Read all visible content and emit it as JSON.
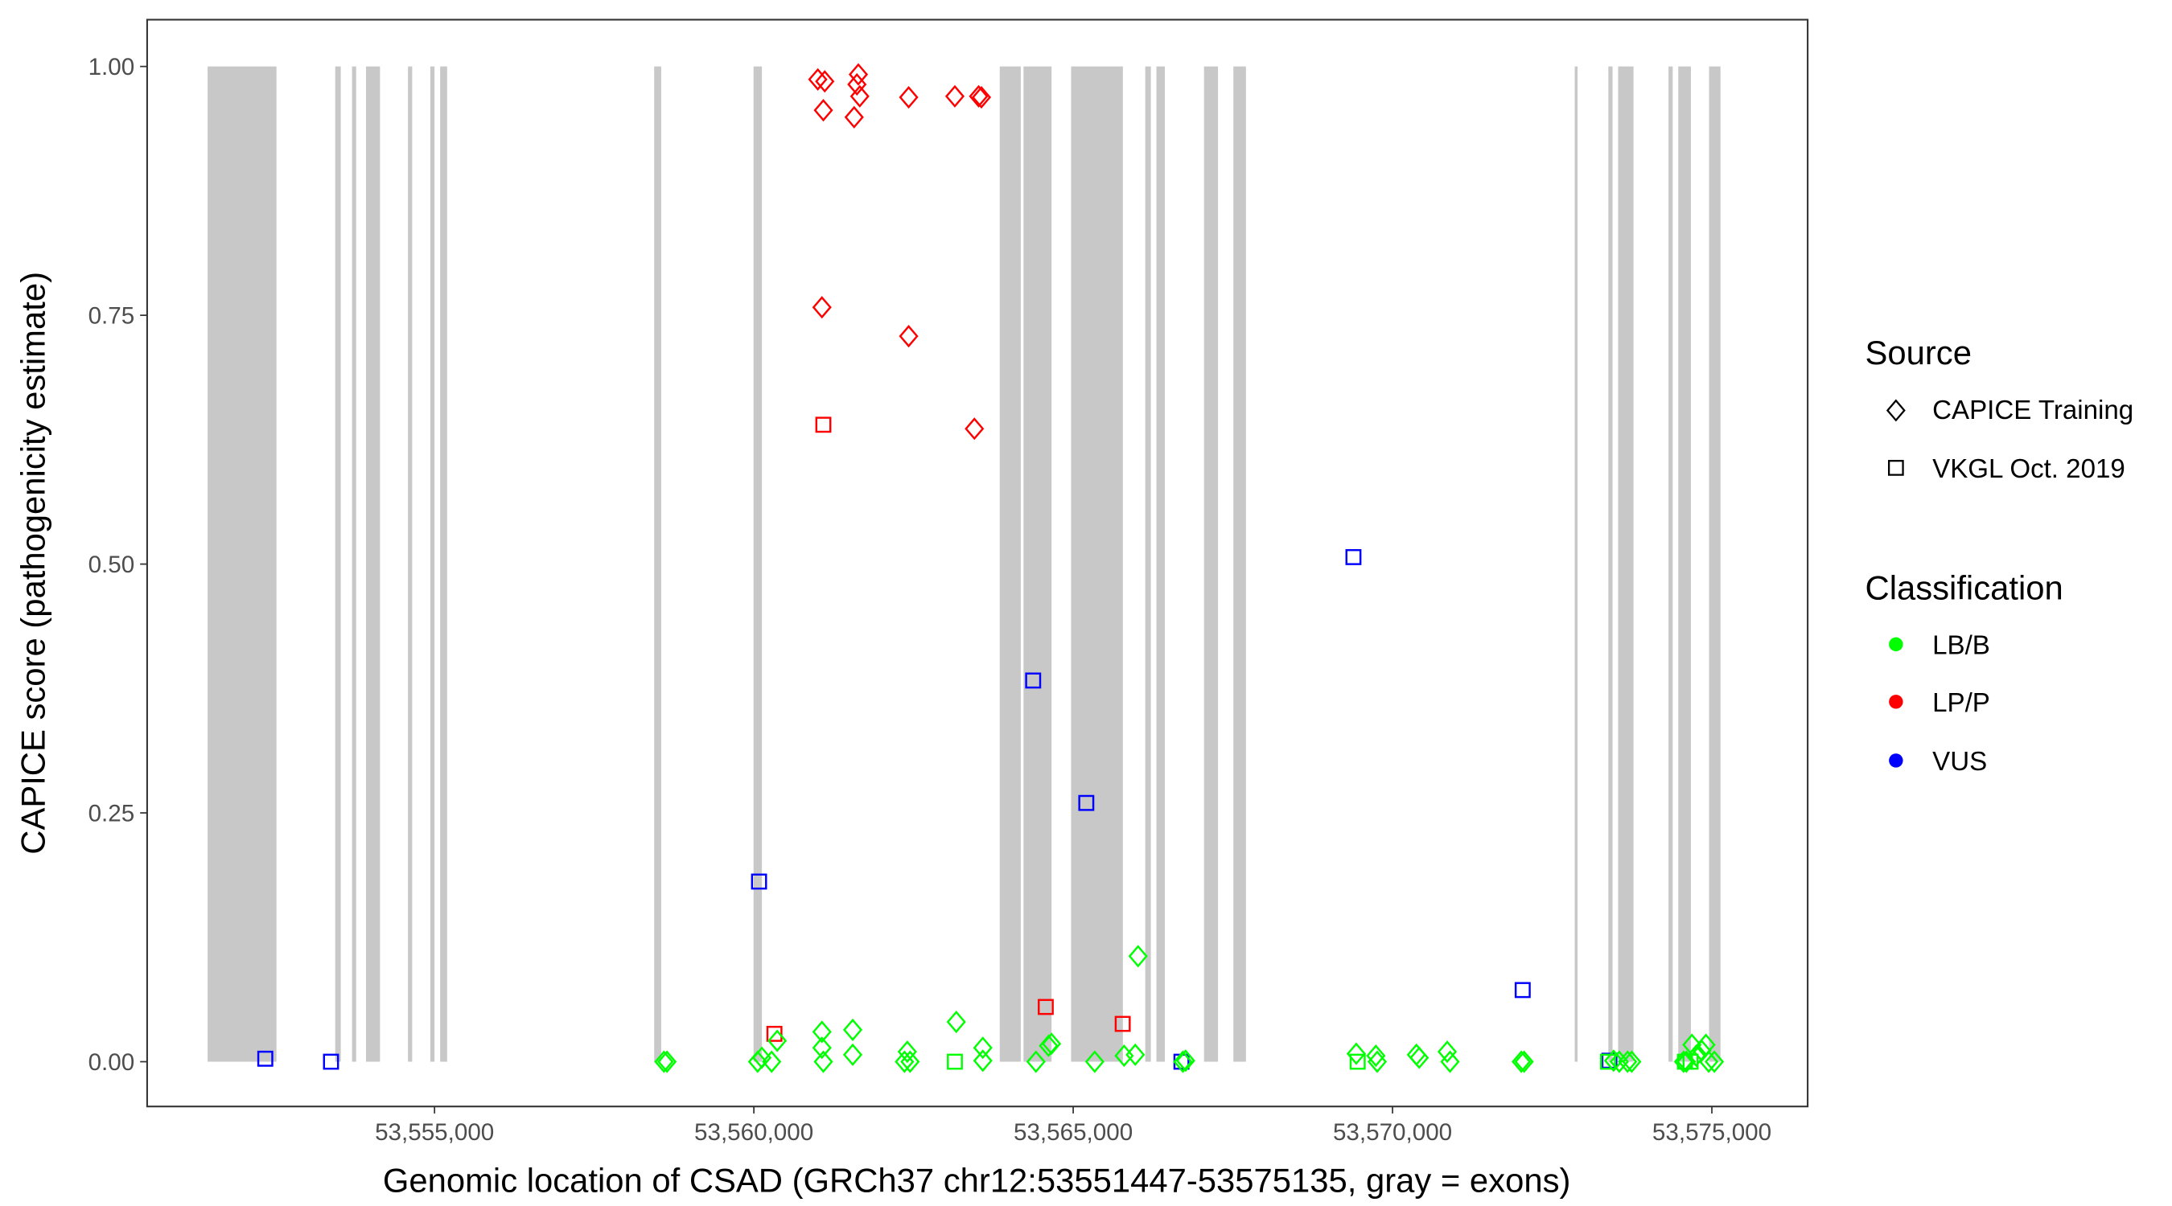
{
  "chart_data": {
    "type": "scatter",
    "xlabel": "Genomic location of CSAD (GRCh37 chr12:53551447-53575135, gray = exons)",
    "ylabel": "CAPICE score (pathogenicity estimate)",
    "xlim": [
      53550500,
      53576500
    ],
    "ylim": [
      -0.045,
      1.047
    ],
    "xticks": [
      53555000,
      53560000,
      53565000,
      53570000,
      53575000
    ],
    "xtick_labels": [
      "53,555,000",
      "53,560,000",
      "53,565,000",
      "53,570,000",
      "53,575,000"
    ],
    "yticks": [
      0,
      0.25,
      0.5,
      0.75,
      1.0
    ],
    "ytick_labels": [
      "0.00",
      "0.25",
      "0.50",
      "0.75",
      "1.00"
    ],
    "grid": false,
    "exons": [
      [
        53551447,
        53552525
      ],
      [
        53553445,
        53553532
      ],
      [
        53553708,
        53553773
      ],
      [
        53553927,
        53554146
      ],
      [
        53554584,
        53554650
      ],
      [
        53554934,
        53555000
      ],
      [
        53555088,
        53555197
      ],
      [
        53558439,
        53558549
      ],
      [
        53559995,
        53560126
      ],
      [
        53563850,
        53564179
      ],
      [
        53564222,
        53564661
      ],
      [
        53564967,
        53565778
      ],
      [
        53566128,
        53566216
      ],
      [
        53566303,
        53566435
      ],
      [
        53567048,
        53567267
      ],
      [
        53567508,
        53567705
      ],
      [
        53572853,
        53572897
      ],
      [
        53573379,
        53573445
      ],
      [
        53573532,
        53573773
      ],
      [
        53574321,
        53574387
      ],
      [
        53574474,
        53574672
      ],
      [
        53574956,
        53575135
      ]
    ],
    "legend": {
      "placement": "right",
      "source_title": "Source",
      "source_items": [
        {
          "label": "CAPICE Training",
          "shape": "diamond"
        },
        {
          "label": "VKGL Oct. 2019",
          "shape": "square"
        }
      ],
      "class_title": "Classification",
      "class_items": [
        {
          "label": "LB/B",
          "color": "#00FF00"
        },
        {
          "label": "LP/P",
          "color": "#FF0000"
        },
        {
          "label": "VUS",
          "color": "#0000FF"
        }
      ]
    },
    "series": [
      {
        "name": "CAPICE Training / LP/P",
        "shape": "diamond",
        "color": "#FF0000",
        "points": [
          [
            53561001,
            0.987
          ],
          [
            53561110,
            0.985
          ],
          [
            53561636,
            0.992
          ],
          [
            53561614,
            0.982
          ],
          [
            53561658,
            0.97
          ],
          [
            53561088,
            0.956
          ],
          [
            53561570,
            0.949
          ],
          [
            53562424,
            0.969
          ],
          [
            53563147,
            0.97
          ],
          [
            53563519,
            0.97
          ],
          [
            53563563,
            0.969
          ],
          [
            53561066,
            0.758
          ],
          [
            53562424,
            0.729
          ],
          [
            53563453,
            0.636
          ]
        ]
      },
      {
        "name": "VKGL Oct. 2019 / LP/P",
        "shape": "square",
        "color": "#FF0000",
        "points": [
          [
            53561088,
            0.64
          ],
          [
            53560322,
            0.028
          ],
          [
            53564570,
            0.055
          ],
          [
            53565775,
            0.038
          ]
        ]
      },
      {
        "name": "VKGL Oct. 2019 / VUS",
        "shape": "square",
        "color": "#0000FF",
        "points": [
          [
            53552350,
            0.003
          ],
          [
            53553379,
            0.0
          ],
          [
            53560081,
            0.181
          ],
          [
            53564373,
            0.383
          ],
          [
            53565205,
            0.26
          ],
          [
            53566695,
            0.0
          ],
          [
            53569388,
            0.507
          ],
          [
            53572038,
            0.072
          ],
          [
            53573396,
            0.001
          ]
        ]
      },
      {
        "name": "CAPICE Training / LB/B",
        "shape": "diamond",
        "color": "#00FF00",
        "points": [
          [
            53558592,
            0.0
          ],
          [
            53558640,
            0.0
          ],
          [
            53560059,
            0.0
          ],
          [
            53560125,
            0.004
          ],
          [
            53560278,
            0.0
          ],
          [
            53560365,
            0.021
          ],
          [
            53561066,
            0.03
          ],
          [
            53561066,
            0.014
          ],
          [
            53561088,
            0.0
          ],
          [
            53561548,
            0.032
          ],
          [
            53561548,
            0.007
          ],
          [
            53562358,
            0.0
          ],
          [
            53562402,
            0.01
          ],
          [
            53562446,
            0.0
          ],
          [
            53563169,
            0.04
          ],
          [
            53563585,
            0.014
          ],
          [
            53563585,
            0.001
          ],
          [
            53564417,
            0.0
          ],
          [
            53564614,
            0.016
          ],
          [
            53564660,
            0.018
          ],
          [
            53565337,
            0.0
          ],
          [
            53565797,
            0.006
          ],
          [
            53565972,
            0.007
          ],
          [
            53566016,
            0.106
          ],
          [
            53566717,
            0.0
          ],
          [
            53566760,
            0.001
          ],
          [
            53569432,
            0.008
          ],
          [
            53569739,
            0.006
          ],
          [
            53569760,
            0.0
          ],
          [
            53570374,
            0.007
          ],
          [
            53570418,
            0.004
          ],
          [
            53570856,
            0.01
          ],
          [
            53570900,
            0.0
          ],
          [
            53572016,
            0.0
          ],
          [
            53572060,
            0.0
          ],
          [
            53573462,
            0.001
          ],
          [
            53573550,
            0.0
          ],
          [
            53573680,
            0.0
          ],
          [
            53573745,
            0.0
          ],
          [
            53574557,
            0.0
          ],
          [
            53574600,
            0.0
          ],
          [
            53574688,
            0.017
          ],
          [
            53574754,
            0.006
          ],
          [
            53574842,
            0.011
          ],
          [
            53574907,
            0.017
          ],
          [
            53574951,
            0.0
          ],
          [
            53575039,
            0.0
          ]
        ]
      },
      {
        "name": "VKGL Oct. 2019 / LB/B",
        "shape": "square",
        "color": "#00FF00",
        "points": [
          [
            53563147,
            0.0
          ],
          [
            53569454,
            0.0
          ],
          [
            53573374,
            0.0
          ],
          [
            53574579,
            0.0
          ],
          [
            53574666,
            0.0
          ]
        ]
      }
    ]
  }
}
